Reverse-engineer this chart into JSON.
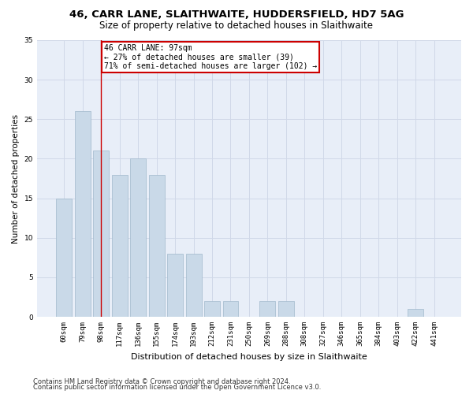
{
  "title1": "46, CARR LANE, SLAITHWAITE, HUDDERSFIELD, HD7 5AG",
  "title2": "Size of property relative to detached houses in Slaithwaite",
  "xlabel": "Distribution of detached houses by size in Slaithwaite",
  "ylabel": "Number of detached properties",
  "categories": [
    "60sqm",
    "79sqm",
    "98sqm",
    "117sqm",
    "136sqm",
    "155sqm",
    "174sqm",
    "193sqm",
    "212sqm",
    "231sqm",
    "250sqm",
    "269sqm",
    "288sqm",
    "308sqm",
    "327sqm",
    "346sqm",
    "365sqm",
    "384sqm",
    "403sqm",
    "422sqm",
    "441sqm"
  ],
  "values": [
    15,
    26,
    21,
    18,
    20,
    18,
    8,
    8,
    2,
    2,
    0,
    2,
    2,
    0,
    0,
    0,
    0,
    0,
    0,
    1,
    0
  ],
  "bar_color": "#c9d9e8",
  "bar_edge_color": "#a0b8cc",
  "grid_color": "#d0d8e8",
  "background_color": "#e8eef8",
  "annotation_line1": "46 CARR LANE: 97sqm",
  "annotation_line2": "← 27% of detached houses are smaller (39)",
  "annotation_line3": "71% of semi-detached houses are larger (102) →",
  "annotation_box_color": "#ffffff",
  "annotation_box_edge_color": "#cc0000",
  "vline_x_index": 2,
  "vline_color": "#cc0000",
  "ylim": [
    0,
    35
  ],
  "yticks": [
    0,
    5,
    10,
    15,
    20,
    25,
    30,
    35
  ],
  "footnote1": "Contains HM Land Registry data © Crown copyright and database right 2024.",
  "footnote2": "Contains public sector information licensed under the Open Government Licence v3.0.",
  "title1_fontsize": 9.5,
  "title2_fontsize": 8.5,
  "xlabel_fontsize": 8,
  "ylabel_fontsize": 7.5,
  "tick_fontsize": 6.5,
  "annot_fontsize": 7,
  "footnote_fontsize": 6
}
